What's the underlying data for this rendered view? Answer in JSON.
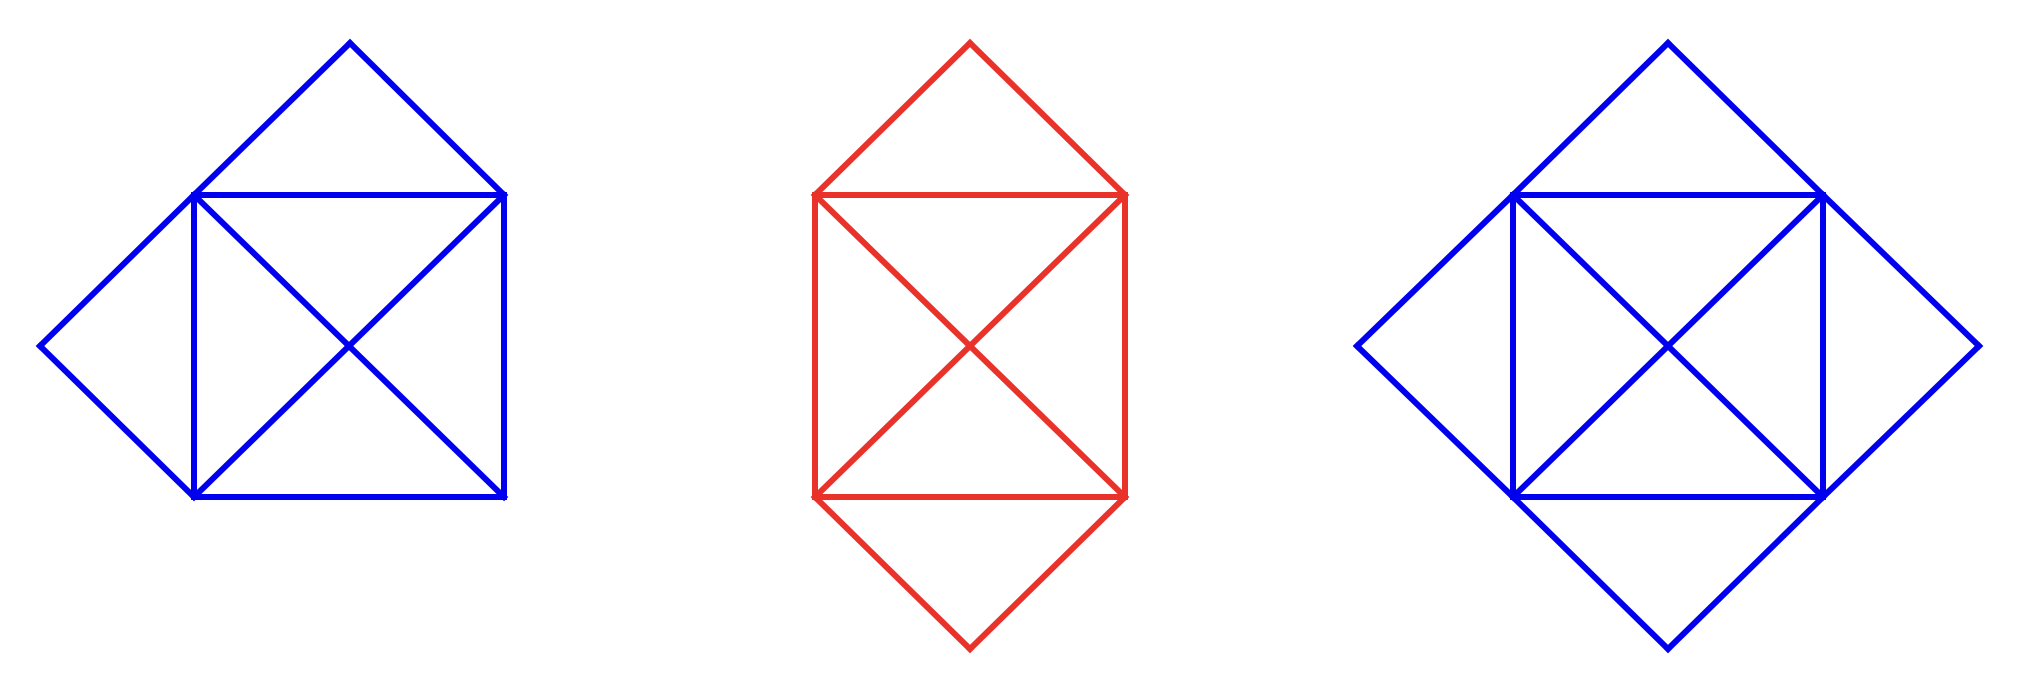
{
  "colors": {
    "blue": "#0000ee",
    "red": "#e8322a",
    "background": "#ffffff"
  },
  "figures": [
    {
      "name": "figure-left",
      "color_key": "blue",
      "vertices": [
        "top",
        "mid-left",
        "top-left",
        "top-right",
        "bottom-left",
        "bottom-right"
      ],
      "edges": [
        [
          "top",
          "top-left"
        ],
        [
          "top",
          "top-right"
        ],
        [
          "top-left",
          "top-right"
        ],
        [
          "top-left",
          "bottom-left"
        ],
        [
          "top-right",
          "bottom-right"
        ],
        [
          "bottom-left",
          "bottom-right"
        ],
        [
          "top-left",
          "bottom-right"
        ],
        [
          "top-right",
          "bottom-left"
        ],
        [
          "mid-left",
          "top-left"
        ],
        [
          "mid-left",
          "bottom-left"
        ]
      ]
    },
    {
      "name": "figure-middle",
      "color_key": "red",
      "vertices": [
        "top",
        "bottom",
        "top-left",
        "top-right",
        "bottom-left",
        "bottom-right"
      ],
      "edges": [
        [
          "top",
          "top-left"
        ],
        [
          "top",
          "top-right"
        ],
        [
          "top-left",
          "top-right"
        ],
        [
          "top-left",
          "bottom-left"
        ],
        [
          "top-right",
          "bottom-right"
        ],
        [
          "bottom-left",
          "bottom-right"
        ],
        [
          "top-left",
          "bottom-right"
        ],
        [
          "top-right",
          "bottom-left"
        ],
        [
          "bottom",
          "bottom-left"
        ],
        [
          "bottom",
          "bottom-right"
        ]
      ]
    },
    {
      "name": "figure-right",
      "color_key": "blue",
      "vertices": [
        "top",
        "bottom",
        "mid-left",
        "mid-right",
        "top-left",
        "top-right",
        "bottom-left",
        "bottom-right"
      ],
      "edges": [
        [
          "top",
          "top-left"
        ],
        [
          "top",
          "top-right"
        ],
        [
          "top-left",
          "top-right"
        ],
        [
          "top-left",
          "bottom-left"
        ],
        [
          "top-right",
          "bottom-right"
        ],
        [
          "bottom-left",
          "bottom-right"
        ],
        [
          "top-left",
          "bottom-right"
        ],
        [
          "top-right",
          "bottom-left"
        ],
        [
          "bottom",
          "bottom-left"
        ],
        [
          "bottom",
          "bottom-right"
        ],
        [
          "mid-left",
          "top-left"
        ],
        [
          "mid-left",
          "bottom-left"
        ],
        [
          "mid-right",
          "top-right"
        ],
        [
          "mid-right",
          "bottom-right"
        ]
      ]
    }
  ]
}
